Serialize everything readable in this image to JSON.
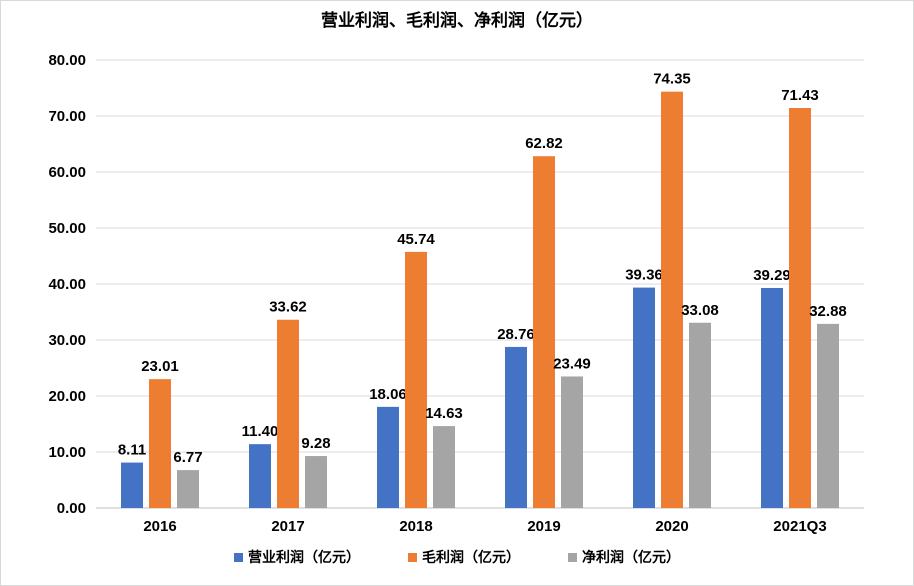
{
  "chart_data": {
    "type": "bar",
    "title": "营业利润、毛利润、净利润（亿元）",
    "categories": [
      "2016",
      "2017",
      "2018",
      "2019",
      "2020",
      "2021Q3"
    ],
    "series": [
      {
        "name": "营业利润（亿元）",
        "color": "#4472C4",
        "values": [
          8.11,
          11.4,
          18.06,
          28.76,
          39.36,
          39.29
        ],
        "labels": [
          "8.11",
          "11.40",
          "18.06",
          "28.76",
          "39.36",
          "39.29"
        ]
      },
      {
        "name": "毛利润（亿元）",
        "color": "#ED7D31",
        "values": [
          23.01,
          33.62,
          45.74,
          62.82,
          74.35,
          71.43
        ],
        "labels": [
          "23.01",
          "33.62",
          "45.74",
          "62.82",
          "74.35",
          "71.43"
        ]
      },
      {
        "name": "净利润（亿元）",
        "color": "#A5A5A5",
        "values": [
          6.77,
          9.28,
          14.63,
          23.49,
          33.08,
          32.88
        ],
        "labels": [
          "6.77",
          "9.28",
          "14.63",
          "23.49",
          "33.08",
          "32.88"
        ]
      }
    ],
    "ylim": [
      0,
      80
    ],
    "yticks": [
      "0.00",
      "10.00",
      "20.00",
      "30.00",
      "40.00",
      "50.00",
      "60.00",
      "70.00",
      "80.00"
    ],
    "grid": true,
    "legend_position": "bottom",
    "xlabel": "",
    "ylabel": ""
  }
}
